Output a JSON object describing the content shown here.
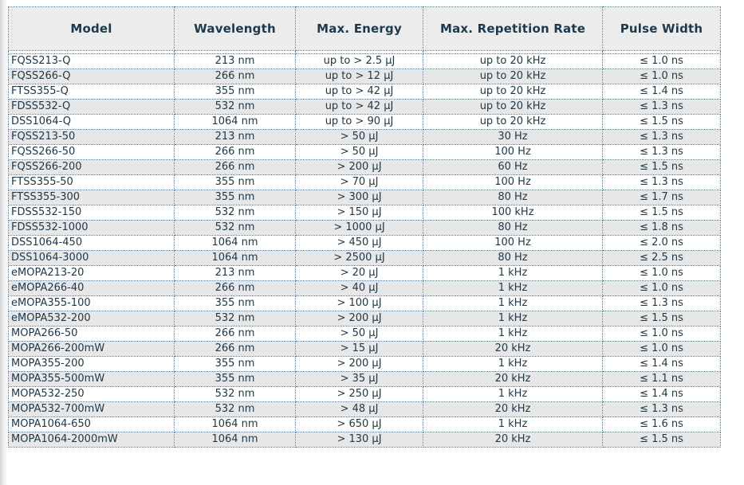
{
  "colors": {
    "border": "#4a7db0",
    "header_bg": "#ececec",
    "stripe_bg": "#e7e7e7",
    "header_text": "#1d3a4c",
    "cell_text": "#20394a"
  },
  "table": {
    "headers": [
      "Model",
      "Wavelength",
      "Max. Energy",
      "Max. Repetition Rate",
      "Pulse Width"
    ],
    "rows": [
      [
        "FQSS213-Q",
        "213 nm",
        "up to > 2.5 µJ",
        "up to 20 kHz",
        "≤ 1.0 ns"
      ],
      [
        "FQSS266-Q",
        "266 nm",
        "up to > 12 µJ",
        "up to 20 kHz",
        "≤ 1.0 ns"
      ],
      [
        "FTSS355-Q",
        "355 nm",
        "up to > 42 µJ",
        "up to 20 kHz",
        "≤ 1.4 ns"
      ],
      [
        "FDSS532-Q",
        "532 nm",
        "up to > 42 µJ",
        "up to 20 kHz",
        "≤ 1.3 ns"
      ],
      [
        "DSS1064-Q",
        "1064 nm",
        "up to > 90 µJ",
        "up to 20 kHz",
        "≤ 1.5 ns"
      ],
      [
        "FQSS213-50",
        "213 nm",
        "> 50 µJ",
        "30 Hz",
        "≤ 1.3 ns"
      ],
      [
        "FQSS266-50",
        "266 nm",
        "> 50 µJ",
        "100 Hz",
        "≤ 1.3 ns"
      ],
      [
        "FQSS266-200",
        "266 nm",
        "> 200 µJ",
        "60 Hz",
        "≤ 1.5 ns"
      ],
      [
        "FTSS355-50",
        "355 nm",
        "> 70 µJ",
        "100 Hz",
        "≤ 1.3 ns"
      ],
      [
        "FTSS355-300",
        "355 nm",
        "> 300 µJ",
        "80 Hz",
        "≤ 1.7 ns"
      ],
      [
        "FDSS532-150",
        "532 nm",
        "> 150 µJ",
        "100 kHz",
        "≤ 1.5 ns"
      ],
      [
        "FDSS532-1000",
        "532 nm",
        "> 1000 µJ",
        "80 Hz",
        "≤ 1.8 ns"
      ],
      [
        "DSS1064-450",
        "1064 nm",
        "> 450 µJ",
        "100 Hz",
        "≤ 2.0 ns"
      ],
      [
        "DSS1064-3000",
        "1064 nm",
        "> 2500 µJ",
        "80 Hz",
        "≤ 2.5 ns"
      ],
      [
        "eMOPA213-20",
        "213 nm",
        "> 20 µJ",
        "1 kHz",
        "≤ 1.0 ns"
      ],
      [
        "eMOPA266-40",
        "266 nm",
        "> 40 µJ",
        "1 kHz",
        "≤ 1.0 ns"
      ],
      [
        "eMOPA355-100",
        "355 nm",
        "> 100 µJ",
        "1 kHz",
        "≤ 1.3 ns"
      ],
      [
        "eMOPA532-200",
        "532 nm",
        "> 200 µJ",
        "1 kHz",
        "≤ 1.5 ns"
      ],
      [
        "MOPA266-50",
        "266 nm",
        "> 50 µJ",
        "1 kHz",
        "≤ 1.0 ns"
      ],
      [
        "MOPA266-200mW",
        "266 nm",
        "> 15 µJ",
        "20 kHz",
        "≤ 1.0 ns"
      ],
      [
        "MOPA355-200",
        "355 nm",
        "> 200 µJ",
        "1 kHz",
        "≤ 1.4 ns"
      ],
      [
        "MOPA355-500mW",
        "355 nm",
        "> 35 µJ",
        "20 kHz",
        "≤ 1.1 ns"
      ],
      [
        "MOPA532-250",
        "532 nm",
        "> 250 µJ",
        "1 kHz",
        "≤ 1.4 ns"
      ],
      [
        "MOPA532-700mW",
        "532 nm",
        "> 48 µJ",
        "20 kHz",
        "≤ 1.3 ns"
      ],
      [
        "MOPA1064-650",
        "1064 nm",
        "> 650 µJ",
        "1 kHz",
        "≤ 1.6 ns"
      ],
      [
        "MOPA1064-2000mW",
        "1064 nm",
        "> 130 µJ",
        "20 kHz",
        "≤ 1.5 ns"
      ]
    ]
  }
}
